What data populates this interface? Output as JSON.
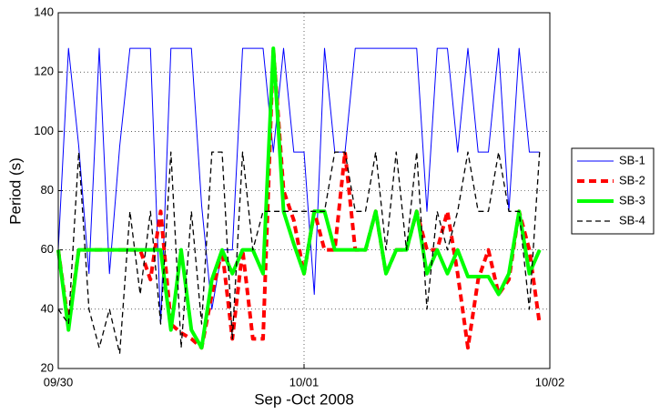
{
  "chart_data": {
    "type": "line",
    "xlabel": "Sep -Oct 2008",
    "ylabel": "Period (s)",
    "x": [
      0,
      1,
      2,
      3,
      4,
      5,
      6,
      7,
      8,
      9,
      10,
      11,
      12,
      13,
      14,
      15,
      16,
      17,
      18,
      19,
      20,
      21,
      22,
      23,
      24,
      25,
      26,
      27,
      28,
      29,
      30,
      31,
      32,
      33,
      34,
      35,
      36,
      37,
      38,
      39,
      40,
      41,
      42,
      43,
      44,
      45,
      46,
      47
    ],
    "series": [
      {
        "name": "SB-1",
        "color": "#0000ff",
        "linewidth": 1,
        "linestyle": "solid",
        "values": [
          60,
          128,
          95,
          52,
          128,
          52,
          95,
          128,
          128,
          128,
          35,
          128,
          128,
          128,
          75,
          40,
          60,
          60,
          128,
          128,
          128,
          93,
          128,
          93,
          93,
          45,
          128,
          93,
          93,
          128,
          128,
          128,
          128,
          128,
          128,
          128,
          73,
          128,
          128,
          93,
          128,
          93,
          93,
          128,
          73,
          128,
          93,
          93
        ]
      },
      {
        "name": "SB-2",
        "color": "#ff0000",
        "linewidth": 4,
        "linestyle": "dashed",
        "values": [
          60,
          35,
          60,
          60,
          60,
          60,
          60,
          60,
          60,
          50,
          73,
          35,
          32,
          30,
          27,
          45,
          60,
          30,
          60,
          30,
          30,
          128,
          80,
          70,
          52,
          73,
          60,
          60,
          93,
          60,
          60,
          73,
          52,
          60,
          60,
          73,
          60,
          60,
          73,
          52,
          27,
          50,
          60,
          45,
          50,
          73,
          60,
          35
        ]
      },
      {
        "name": "SB-3",
        "color": "#00ff00",
        "linewidth": 4,
        "linestyle": "solid",
        "values": [
          60,
          33,
          60,
          60,
          60,
          60,
          60,
          60,
          60,
          60,
          60,
          33,
          60,
          33,
          27,
          50,
          60,
          52,
          60,
          60,
          52,
          128,
          73,
          62,
          52,
          73,
          73,
          60,
          60,
          60,
          60,
          73,
          52,
          60,
          60,
          73,
          52,
          60,
          52,
          60,
          51,
          51,
          51,
          45,
          52,
          73,
          52,
          60
        ]
      },
      {
        "name": "SB-4",
        "color": "#000000",
        "linewidth": 1.3,
        "linestyle": "dashed",
        "values": [
          40,
          35,
          93,
          40,
          27,
          40,
          25,
          73,
          45,
          73,
          35,
          93,
          27,
          73,
          35,
          93,
          93,
          30,
          93,
          60,
          73,
          73,
          73,
          73,
          73,
          73,
          73,
          93,
          93,
          73,
          73,
          93,
          60,
          93,
          60,
          93,
          40,
          73,
          60,
          73,
          93,
          73,
          73,
          93,
          73,
          73,
          40,
          93
        ]
      }
    ],
    "xlim": [
      0,
      48
    ],
    "xticks": [
      {
        "value": 0,
        "label": "09/30"
      },
      {
        "value": 24,
        "label": "10/01"
      },
      {
        "value": 48,
        "label": "10/02"
      }
    ],
    "ylim": [
      20,
      140
    ],
    "yticks": [
      20,
      40,
      60,
      80,
      100,
      120,
      140
    ],
    "grid": true,
    "legend": "east-outside"
  }
}
